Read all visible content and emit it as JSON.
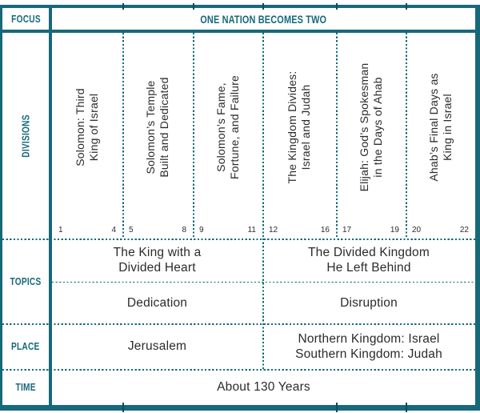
{
  "palette": {
    "teal": "#16697B",
    "ink": "#2B2B2B"
  },
  "row_labels": {
    "focus": "FOCUS",
    "divisions": "DIVISIONS",
    "topics": "TOPICS",
    "place": "PLACE",
    "time": "TIME"
  },
  "focus": {
    "title": "ONE NATION BECOMES TWO"
  },
  "divisions": [
    {
      "title": "Solomon: Third\nKing of Israel",
      "chapter_start": "1",
      "chapter_end": "4"
    },
    {
      "title": "Solomon’s Temple\nBuilt and Dedicated",
      "chapter_start": "5",
      "chapter_end": "8"
    },
    {
      "title": "Solomon’s Fame,\nFortune, and Failure",
      "chapter_start": "9",
      "chapter_end": "11"
    },
    {
      "title": "The Kingdom Divides:\nIsrael and Judah",
      "chapter_start": "12",
      "chapter_end": "16"
    },
    {
      "title": "Elijah: God’s Spokesman\nin the Days of Ahab",
      "chapter_start": "17",
      "chapter_end": "19"
    },
    {
      "title": "Ahab’s Final Days as\nKing in Israel",
      "chapter_start": "20",
      "chapter_end": "22"
    }
  ],
  "topics": {
    "left_main": "The King with a\nDivided Heart",
    "right_main": "The Divided Kingdom\nHe Left Behind",
    "left_sub": "Dedication",
    "right_sub": "Disruption"
  },
  "place": {
    "left": "Jerusalem",
    "right": "Northern Kingdom: Israel\nSouthern Kingdom: Judah"
  },
  "time": {
    "value": "About 130 Years"
  }
}
